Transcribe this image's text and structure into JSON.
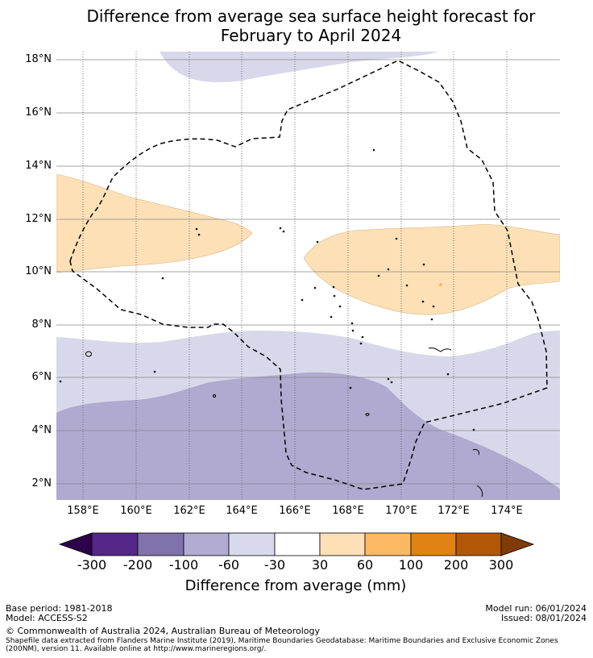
{
  "title": {
    "line1": "Difference from average sea surface height forecast for",
    "line2": "February to April 2024"
  },
  "map": {
    "lat_labels": [
      "18°N",
      "16°N",
      "14°N",
      "12°N",
      "10°N",
      "8°N",
      "6°N",
      "4°N",
      "2°N"
    ],
    "lon_labels": [
      "158°E",
      "160°E",
      "162°E",
      "164°E",
      "166°E",
      "168°E",
      "170°E",
      "172°E",
      "174°E"
    ],
    "region": "Marshall Islands EEZ (dashed outline)",
    "colors": {
      "neg_200_100": "#b0a9d0",
      "neg_100_60": "#b0a9d0",
      "neg_60_30": "#d8d8ea",
      "pos_30_60": "#fde0b6",
      "pos_60_100": "#fdb863",
      "grid": "#888888"
    }
  },
  "colorbar": {
    "ticks": [
      "-300",
      "-200",
      "-100",
      "-60",
      "-30",
      "30",
      "60",
      "100",
      "200",
      "300"
    ],
    "colors": [
      "#2d004b",
      "#542788",
      "#8073ac",
      "#b2abd2",
      "#d8daeb",
      "#ffffff",
      "#fee0b6",
      "#fdb863",
      "#e08214",
      "#b35806",
      "#7f3b08"
    ],
    "label": "Difference from average (mm)"
  },
  "footer": {
    "base_period": "Base period: 1981-2018",
    "model": "Model: ACCESS-S2",
    "model_run": "Model run: 06/01/2024",
    "issued": "Issued: 08/01/2024",
    "copyright": "© Commonwealth of Australia 2024, Australian Bureau of Meteorology",
    "shapefile_line1": "Shapefile data extracted from Flanders Marine Institute (2019), Maritime Boundaries Geodatabase: Maritime Boundaries and Exclusive Economic Zones",
    "shapefile_line2": "(200NM), version 11. Available online at http://www.marineregions.org/."
  }
}
